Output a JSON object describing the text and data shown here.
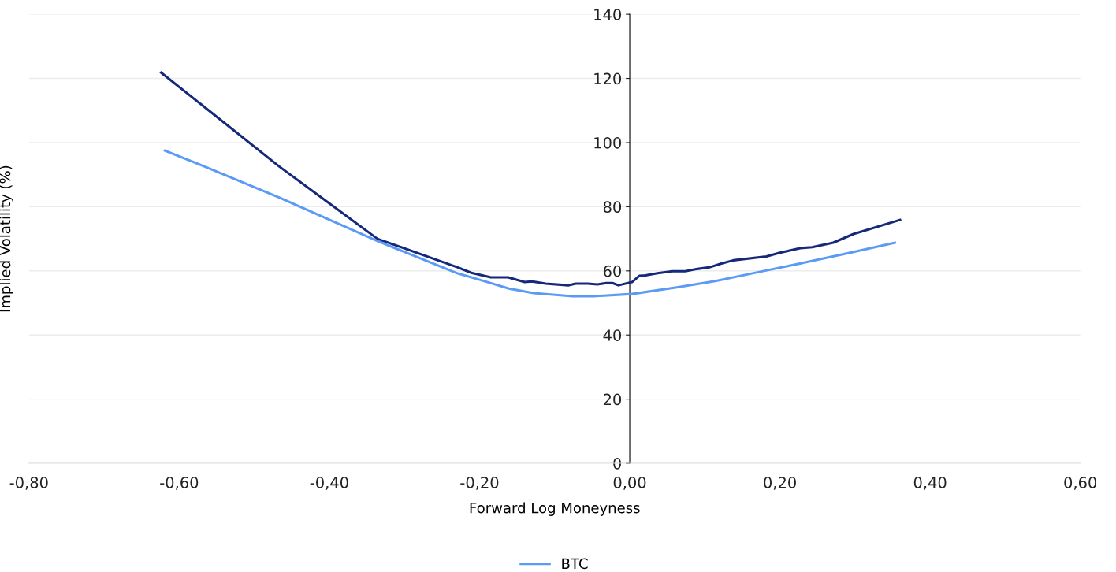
{
  "chart_data": {
    "type": "line",
    "xlabel": "Forward Log Moneyness",
    "ylabel": "Implied Volatility (%)",
    "xlim": [
      -0.8,
      0.6
    ],
    "xticks": [
      {
        "value": -0.8,
        "label": "-0,80"
      },
      {
        "value": -0.6,
        "label": "-0,60"
      },
      {
        "value": -0.4,
        "label": "-0,40"
      },
      {
        "value": -0.2,
        "label": "-0,20"
      },
      {
        "value": 0,
        "label": "0,00"
      },
      {
        "value": 0.2,
        "label": "0,20"
      },
      {
        "value": 0.4,
        "label": "0,40"
      },
      {
        "value": 0.6,
        "label": "0,60"
      }
    ],
    "ylim": [
      0,
      140
    ],
    "yticks": [
      0,
      20,
      40,
      60,
      80,
      100,
      120,
      140
    ],
    "grid": "y",
    "legend": "bottom",
    "marker": "none",
    "line_style": "solid",
    "series": [
      {
        "color": "#15287a",
        "x": [
          -0.624,
          -0.467,
          -0.336,
          -0.229,
          -0.211,
          -0.185,
          -0.162,
          -0.14,
          -0.13,
          -0.112,
          -0.082,
          -0.072,
          -0.056,
          -0.043,
          -0.031,
          -0.023,
          -0.015,
          0.003,
          0.013,
          0.021,
          0.037,
          0.057,
          0.074,
          0.09,
          0.106,
          0.122,
          0.138,
          0.182,
          0.199,
          0.227,
          0.243,
          0.271,
          0.298,
          0.36
        ],
        "values": [
          121.8,
          92.6,
          70.0,
          61.1,
          59.4,
          58.0,
          58.0,
          56.5,
          56.7,
          56.0,
          55.5,
          56.0,
          56.0,
          55.8,
          56.2,
          56.2,
          55.5,
          56.5,
          58.5,
          58.6,
          59.3,
          59.9,
          59.9,
          60.6,
          61.1,
          62.3,
          63.3,
          64.5,
          65.6,
          67.1,
          67.4,
          68.8,
          71.5,
          75.9
        ]
      },
      {
        "name": "BTC",
        "color": "#5b9bf5",
        "x": [
          -0.619,
          -0.568,
          -0.467,
          -0.336,
          -0.229,
          -0.198,
          -0.161,
          -0.128,
          -0.076,
          -0.048,
          0.003,
          0.061,
          0.114,
          0.175,
          0.235,
          0.296,
          0.353
        ],
        "values": [
          97.5,
          92.7,
          82.9,
          69.3,
          59.2,
          57.1,
          54.5,
          53.1,
          52.1,
          52.1,
          52.8,
          54.8,
          56.8,
          59.8,
          62.7,
          65.8,
          68.8
        ]
      }
    ]
  }
}
